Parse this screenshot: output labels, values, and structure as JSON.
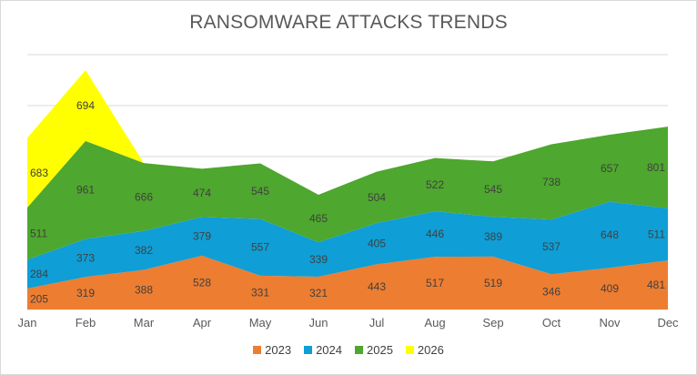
{
  "chart_data": {
    "type": "area",
    "stacked": true,
    "title": "RANSOMWARE ATTACKS TRENDS",
    "categories": [
      "Jan",
      "Feb",
      "Mar",
      "Apr",
      "May",
      "Jun",
      "Jul",
      "Aug",
      "Sep",
      "Oct",
      "Nov",
      "Dec"
    ],
    "series": [
      {
        "name": "2023",
        "color": "#ED7D31",
        "values": [
          205,
          319,
          388,
          528,
          331,
          321,
          443,
          517,
          519,
          346,
          409,
          481
        ]
      },
      {
        "name": "2024",
        "color": "#0F9ED5",
        "values": [
          284,
          373,
          382,
          379,
          557,
          339,
          405,
          446,
          389,
          537,
          648,
          511
        ]
      },
      {
        "name": "2025",
        "color": "#4EA72E",
        "values": [
          511,
          961,
          666,
          474,
          545,
          465,
          504,
          522,
          545,
          738,
          657,
          801
        ]
      },
      {
        "name": "2026",
        "color": "#FFFF00",
        "values": [
          683,
          694,
          null,
          null,
          null,
          null,
          null,
          null,
          null,
          null,
          null,
          null
        ]
      }
    ],
    "ylim": [
      0,
      2500
    ],
    "grid": true,
    "legend": "bottom",
    "data_labels": true
  }
}
